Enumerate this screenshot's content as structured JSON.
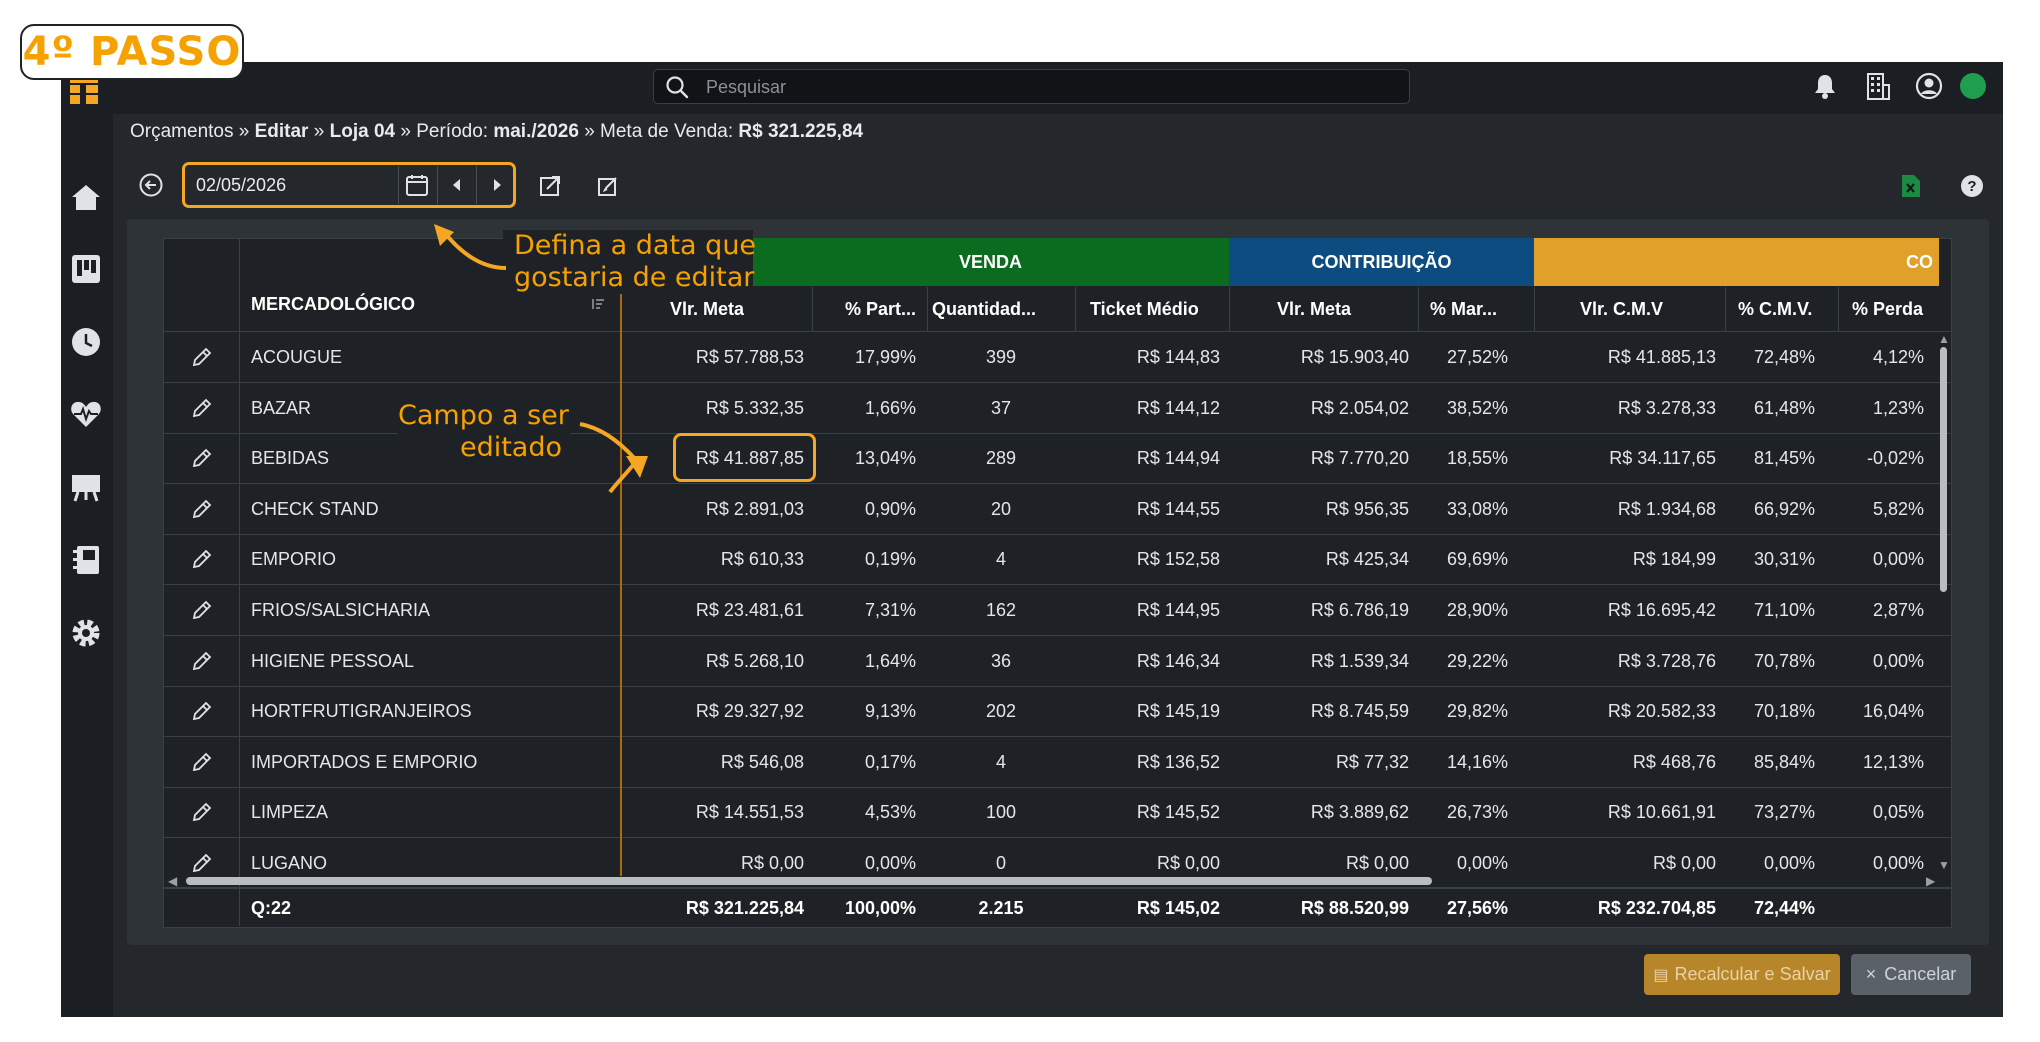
{
  "step_badge": "4º PASSO",
  "search": {
    "placeholder": "Pesquisar"
  },
  "breadcrumb": {
    "p1": "Orçamentos »",
    "p2": "Editar",
    "p3": "»",
    "p4": "Loja 04",
    "p5": "» Período:",
    "p6": "mai./2026",
    "p7": "» Meta de Venda:",
    "p8": "R$ 321.225,84"
  },
  "toolbar": {
    "date_value": "02/05/2026"
  },
  "annotations": {
    "date_l1": "Defina a data que",
    "date_l2": "gostaria de editar",
    "field_l1": "Campo a ser",
    "field_l2": "editado"
  },
  "groups": {
    "venda": "VENDA",
    "contribuicao": "CONTRIBUIÇÃO",
    "cmv": "CO"
  },
  "colors": {
    "venda": "#0b6b1e",
    "contribuicao": "#0d4c80",
    "cmv": "#e0a02a",
    "highlight": "#f5a623"
  },
  "columns": {
    "mercadologico": "MERCADOLÓGICO",
    "vlr_meta": "Vlr. Meta",
    "part": "% Part...",
    "qtd": "Quantidad...",
    "ticket": "Ticket Médio",
    "contrib_meta": "Vlr. Meta",
    "margem": "% Mar...",
    "vlr_cmv": "Vlr. C.M.V",
    "pct_cmv": "% C.M.V.",
    "perda": "% Perda"
  },
  "rows": [
    {
      "name": "ACOUGUE",
      "vlr_meta": "R$ 57.788,53",
      "part": "17,99%",
      "qtd": "399",
      "ticket": "R$ 144,83",
      "contrib": "R$ 15.903,40",
      "margem": "27,52%",
      "cmv": "R$ 41.885,13",
      "pct_cmv": "72,48%",
      "perda": "4,12%"
    },
    {
      "name": "BAZAR",
      "vlr_meta": "R$ 5.332,35",
      "part": "1,66%",
      "qtd": "37",
      "ticket": "R$ 144,12",
      "contrib": "R$ 2.054,02",
      "margem": "38,52%",
      "cmv": "R$ 3.278,33",
      "pct_cmv": "61,48%",
      "perda": "1,23%"
    },
    {
      "name": "BEBIDAS",
      "vlr_meta": "R$ 41.887,85",
      "part": "13,04%",
      "qtd": "289",
      "ticket": "R$ 144,94",
      "contrib": "R$ 7.770,20",
      "margem": "18,55%",
      "cmv": "R$ 34.117,65",
      "pct_cmv": "81,45%",
      "perda": "-0,02%"
    },
    {
      "name": "CHECK STAND",
      "vlr_meta": "R$ 2.891,03",
      "part": "0,90%",
      "qtd": "20",
      "ticket": "R$ 144,55",
      "contrib": "R$ 956,35",
      "margem": "33,08%",
      "cmv": "R$ 1.934,68",
      "pct_cmv": "66,92%",
      "perda": "5,82%"
    },
    {
      "name": "EMPORIO",
      "vlr_meta": "R$ 610,33",
      "part": "0,19%",
      "qtd": "4",
      "ticket": "R$ 152,58",
      "contrib": "R$ 425,34",
      "margem": "69,69%",
      "cmv": "R$ 184,99",
      "pct_cmv": "30,31%",
      "perda": "0,00%"
    },
    {
      "name": "FRIOS/SALSICHARIA",
      "vlr_meta": "R$ 23.481,61",
      "part": "7,31%",
      "qtd": "162",
      "ticket": "R$ 144,95",
      "contrib": "R$ 6.786,19",
      "margem": "28,90%",
      "cmv": "R$ 16.695,42",
      "pct_cmv": "71,10%",
      "perda": "2,87%"
    },
    {
      "name": "HIGIENE PESSOAL",
      "vlr_meta": "R$ 5.268,10",
      "part": "1,64%",
      "qtd": "36",
      "ticket": "R$ 146,34",
      "contrib": "R$ 1.539,34",
      "margem": "29,22%",
      "cmv": "R$ 3.728,76",
      "pct_cmv": "70,78%",
      "perda": "0,00%"
    },
    {
      "name": "HORTFRUTIGRANJEIROS",
      "vlr_meta": "R$ 29.327,92",
      "part": "9,13%",
      "qtd": "202",
      "ticket": "R$ 145,19",
      "contrib": "R$ 8.745,59",
      "margem": "29,82%",
      "cmv": "R$ 20.582,33",
      "pct_cmv": "70,18%",
      "perda": "16,04%"
    },
    {
      "name": "IMPORTADOS E EMPORIO",
      "vlr_meta": "R$ 546,08",
      "part": "0,17%",
      "qtd": "4",
      "ticket": "R$ 136,52",
      "contrib": "R$ 77,32",
      "margem": "14,16%",
      "cmv": "R$ 468,76",
      "pct_cmv": "85,84%",
      "perda": "12,13%"
    },
    {
      "name": "LIMPEZA",
      "vlr_meta": "R$ 14.551,53",
      "part": "4,53%",
      "qtd": "100",
      "ticket": "R$ 145,52",
      "contrib": "R$ 3.889,62",
      "margem": "26,73%",
      "cmv": "R$ 10.661,91",
      "pct_cmv": "73,27%",
      "perda": "0,05%"
    },
    {
      "name": "LUGANO",
      "vlr_meta": "R$ 0,00",
      "part": "0,00%",
      "qtd": "0",
      "ticket": "R$ 0,00",
      "contrib": "R$ 0,00",
      "margem": "0,00%",
      "cmv": "R$ 0,00",
      "pct_cmv": "0,00%",
      "perda": "0,00%"
    }
  ],
  "totals": {
    "count": "Q:22",
    "vlr_meta": "R$ 321.225,84",
    "part": "100,00%",
    "qtd": "2.215",
    "ticket": "R$ 145,02",
    "contrib": "R$ 88.520,99",
    "margem": "27,56%",
    "cmv": "R$ 232.704,85",
    "pct_cmv": "72,44%"
  },
  "buttons": {
    "save": "Recalcular e Salvar",
    "cancel": "Cancelar"
  },
  "icons": [
    "logo-icon",
    "search-icon",
    "bell-icon",
    "building-icon",
    "user-circle-icon",
    "home-icon",
    "kanban-icon",
    "clock-icon",
    "heart-pulse-icon",
    "easel-icon",
    "notebook-icon",
    "gear-icon",
    "back-icon",
    "calendar-icon",
    "prev-icon",
    "next-icon",
    "export-icon",
    "edit-box-icon",
    "excel-icon",
    "help-icon",
    "pencil-icon"
  ]
}
